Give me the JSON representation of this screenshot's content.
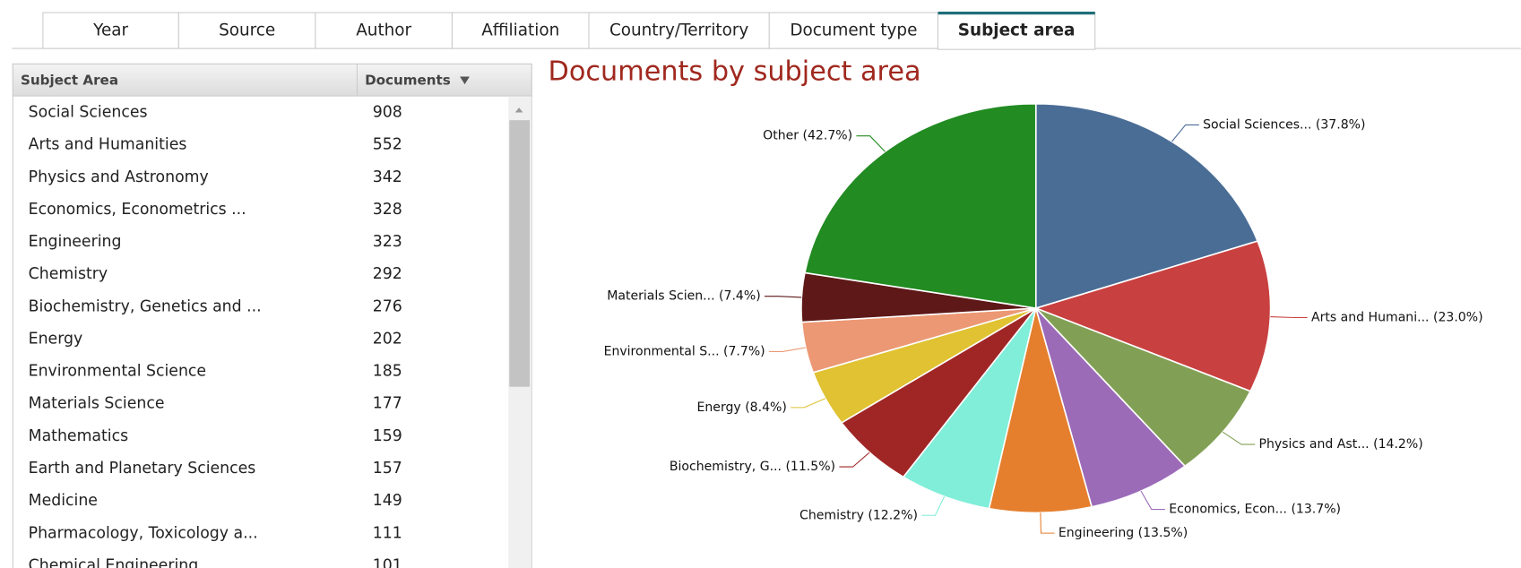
{
  "tabs": [
    "Year",
    "Source",
    "Author",
    "Affiliation",
    "Country/Territory",
    "Document type",
    "Subject area"
  ],
  "active_tab": 6,
  "table": {
    "headers": [
      "Subject Area",
      "Documents"
    ],
    "rows": [
      [
        "Social Sciences",
        "908"
      ],
      [
        "Arts and Humanities",
        "552"
      ],
      [
        "Physics and Astronomy",
        "342"
      ],
      [
        "Economics, Econometrics ...",
        "328"
      ],
      [
        "Engineering",
        "323"
      ],
      [
        "Chemistry",
        "292"
      ],
      [
        "Biochemistry, Genetics and ...",
        "276"
      ],
      [
        "Energy",
        "202"
      ],
      [
        "Environmental Science",
        "185"
      ],
      [
        "Materials Science",
        "177"
      ],
      [
        "Mathematics",
        "159"
      ],
      [
        "Earth and Planetary Sciences",
        "157"
      ],
      [
        "Medicine",
        "149"
      ],
      [
        "Pharmacology, Toxicology a...",
        "111"
      ],
      [
        "Chemical Engineering",
        "101"
      ]
    ]
  },
  "chart_data": {
    "type": "pie",
    "title": "Documents by subject area",
    "categories": [
      "Social Sciences...",
      "Arts and Humani...",
      "Physics and Ast...",
      "Economics, Econ...",
      "Engineering",
      "Chemistry",
      "Biochemistry, G...",
      "Energy",
      "Environmental S...",
      "Materials Scien...",
      "Other"
    ],
    "values": [
      37.8,
      23.0,
      14.2,
      13.7,
      13.5,
      12.2,
      11.5,
      8.4,
      7.7,
      7.4,
      42.7
    ],
    "value_labels": [
      "(37.8%)",
      "(23.0%)",
      "(14.2%)",
      "(13.7%)",
      "(13.5%)",
      "(12.2%)",
      "(11.5%)",
      "(8.4%)",
      "(7.7%)",
      "(7.4%)",
      "(42.7%)"
    ],
    "colors": [
      "#4a6d96",
      "#c94040",
      "#82a055",
      "#9b6bb8",
      "#e57f2e",
      "#80eed8",
      "#a02626",
      "#e0c232",
      "#ec9874",
      "#5e1818",
      "#228b22"
    ]
  }
}
